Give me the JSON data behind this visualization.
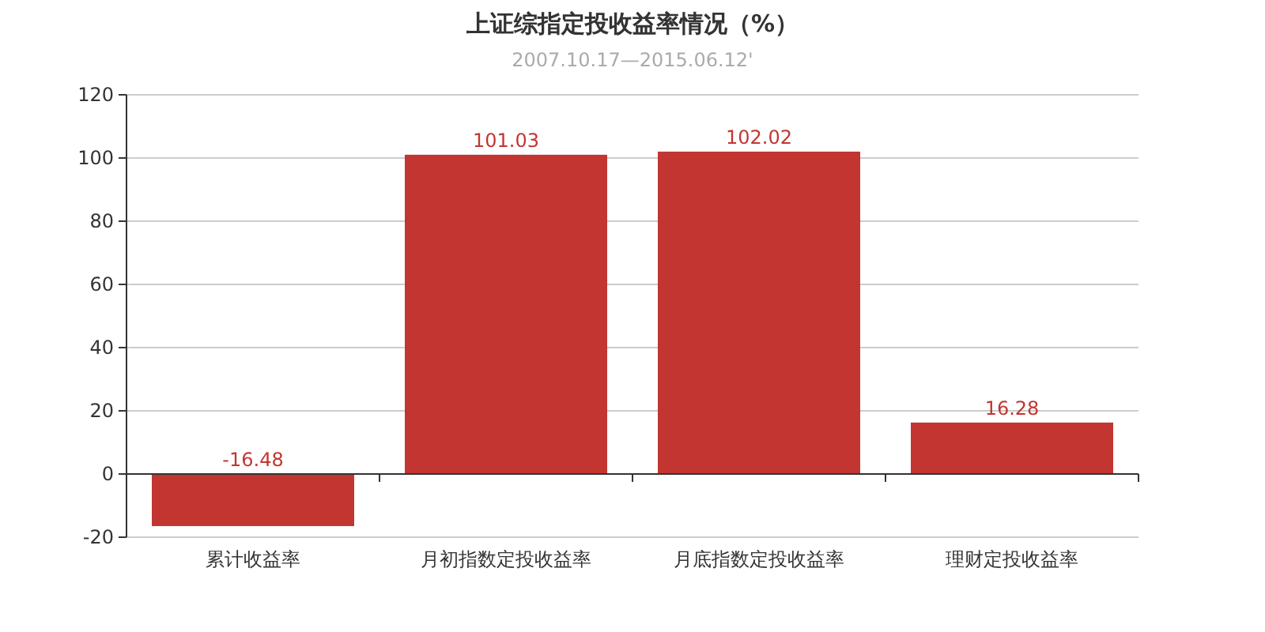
{
  "chart_data": {
    "type": "bar",
    "title": "上证综指定投收益率情况（%）",
    "subtitle": "2007.10.17—2015.06.12'",
    "categories": [
      "累计收益率",
      "月初指数定投收益率",
      "月底指数定投收益率",
      "理财定投收益率"
    ],
    "values": [
      -16.48,
      101.03,
      102.02,
      16.28
    ],
    "color": "#c23531",
    "ylim": [
      -20,
      120
    ],
    "yticks": [
      -20,
      0,
      20,
      40,
      60,
      80,
      100,
      120
    ],
    "grid": "y",
    "data_labels": true
  }
}
